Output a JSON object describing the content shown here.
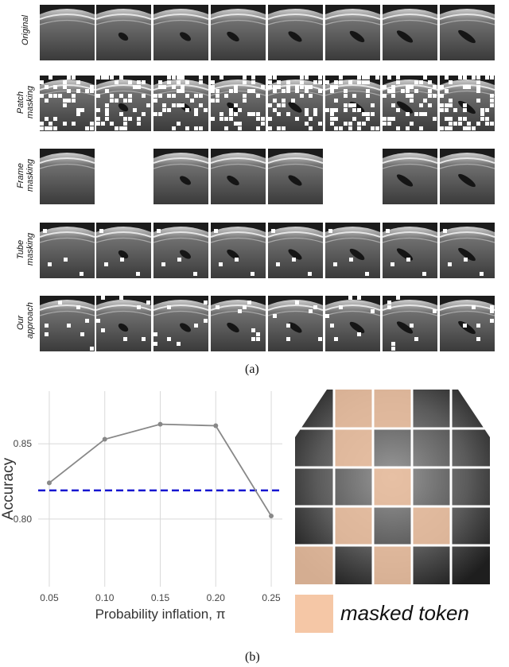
{
  "figure_a": {
    "row_labels": [
      "Original",
      "Patch\nmasking",
      "Frame\nmasking",
      "Tube\nmasking",
      "Our\napproach"
    ],
    "caption": "(a)"
  },
  "figure_b": {
    "caption": "(b)",
    "legend_label": "masked token",
    "legend_color": "#f5c7a6"
  },
  "chart_data": {
    "type": "line",
    "x": [
      0.05,
      0.1,
      0.15,
      0.2,
      0.25
    ],
    "x_tick_labels": [
      "0.05",
      "0.10",
      "0.15",
      "0.20",
      "0.25"
    ],
    "series": [
      {
        "values": [
          0.824,
          0.853,
          0.863,
          0.862,
          0.802
        ],
        "color": "#888888"
      }
    ],
    "baseline": {
      "value": 0.819,
      "color": "#1515d0",
      "style": "dashed"
    },
    "xlabel": "Probability inflation, π",
    "ylabel": "Accuracy",
    "y_tick_values": [
      0.8,
      0.85
    ],
    "y_tick_labels": [
      "0.80",
      "0.85"
    ],
    "xlim": [
      0.04,
      0.26
    ],
    "ylim": [
      0.755,
      0.885
    ],
    "grid": true
  }
}
